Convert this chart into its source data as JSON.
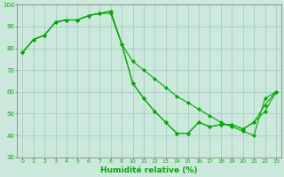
{
  "line1_x": [
    0,
    1,
    2,
    3,
    4,
    5,
    6,
    7,
    8,
    9,
    10,
    11,
    12,
    13,
    14,
    15,
    16,
    17,
    18,
    19,
    20,
    21,
    22,
    23
  ],
  "line1_y": [
    78,
    84,
    86,
    92,
    93,
    93,
    95,
    96,
    97,
    82,
    74,
    70,
    66,
    62,
    58,
    55,
    52,
    49,
    46,
    44,
    42,
    40,
    57,
    60
  ],
  "line2_x": [
    0,
    1,
    2,
    3,
    4,
    5,
    6,
    7,
    8,
    9,
    10,
    11,
    12,
    13,
    14,
    15,
    16,
    17,
    18,
    19,
    20,
    21,
    22,
    23
  ],
  "line2_y": [
    78,
    84,
    86,
    92,
    93,
    93,
    95,
    96,
    96,
    82,
    64,
    57,
    51,
    46,
    41,
    41,
    46,
    44,
    45,
    45,
    43,
    46,
    51,
    60
  ],
  "line3_x": [
    0,
    1,
    2,
    3,
    4,
    5,
    6,
    7,
    8,
    9,
    10,
    11,
    12,
    13,
    14,
    15,
    16,
    17,
    18,
    19,
    20,
    21,
    22,
    23
  ],
  "line3_y": [
    78,
    84,
    86,
    92,
    93,
    93,
    95,
    96,
    97,
    82,
    64,
    57,
    51,
    46,
    41,
    41,
    46,
    44,
    45,
    45,
    43,
    46,
    54,
    60
  ],
  "ylim": [
    30,
    100
  ],
  "xlim": [
    -0.5,
    23.5
  ],
  "yticks": [
    30,
    40,
    50,
    60,
    70,
    80,
    90,
    100
  ],
  "xtick_labels": [
    "0",
    "1",
    "2",
    "3",
    "4",
    "5",
    "6",
    "7",
    "8",
    "9",
    "10",
    "11",
    "12",
    "13",
    "14",
    "15",
    "16",
    "17",
    "18",
    "19",
    "20",
    "21",
    "22",
    "23"
  ],
  "line_color": "#00aa00",
  "bg_color": "#cce8dc",
  "grid_color": "#99ccbb",
  "xlabel": "Humidité relative (%)",
  "xlabel_color": "#00aa00",
  "markersize": 2.5,
  "linewidth": 0.8,
  "tick_fontsize": 4.5,
  "xlabel_fontsize": 6.5
}
